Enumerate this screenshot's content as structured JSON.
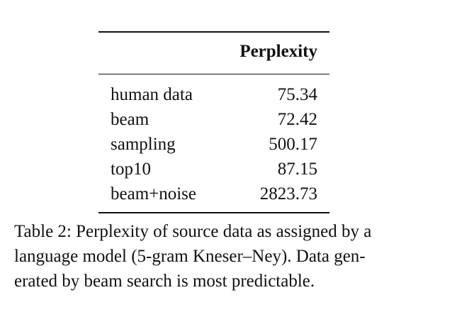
{
  "table": {
    "header": {
      "label_column": "",
      "value_column": "Perplexity"
    },
    "rows": [
      {
        "label": "human data",
        "value": "75.34"
      },
      {
        "label": "beam",
        "value": "72.42"
      },
      {
        "label": "sampling",
        "value": "500.17"
      },
      {
        "label": "top10",
        "value": "87.15"
      },
      {
        "label": "beam+noise",
        "value": "2823.73"
      }
    ]
  },
  "caption": {
    "lines": [
      "Table 2: Perplexity of source data as assigned by a",
      "language model (5-gram Kneser–Ney). Data gen-",
      "erated by beam search is most predictable."
    ]
  },
  "chart_data": {
    "type": "table",
    "columns": [
      "",
      "Perplexity"
    ],
    "rows": [
      [
        "human data",
        75.34
      ],
      [
        "beam",
        72.42
      ],
      [
        "sampling",
        500.17
      ],
      [
        "top10",
        87.15
      ],
      [
        "beam+noise",
        2823.73
      ]
    ]
  }
}
